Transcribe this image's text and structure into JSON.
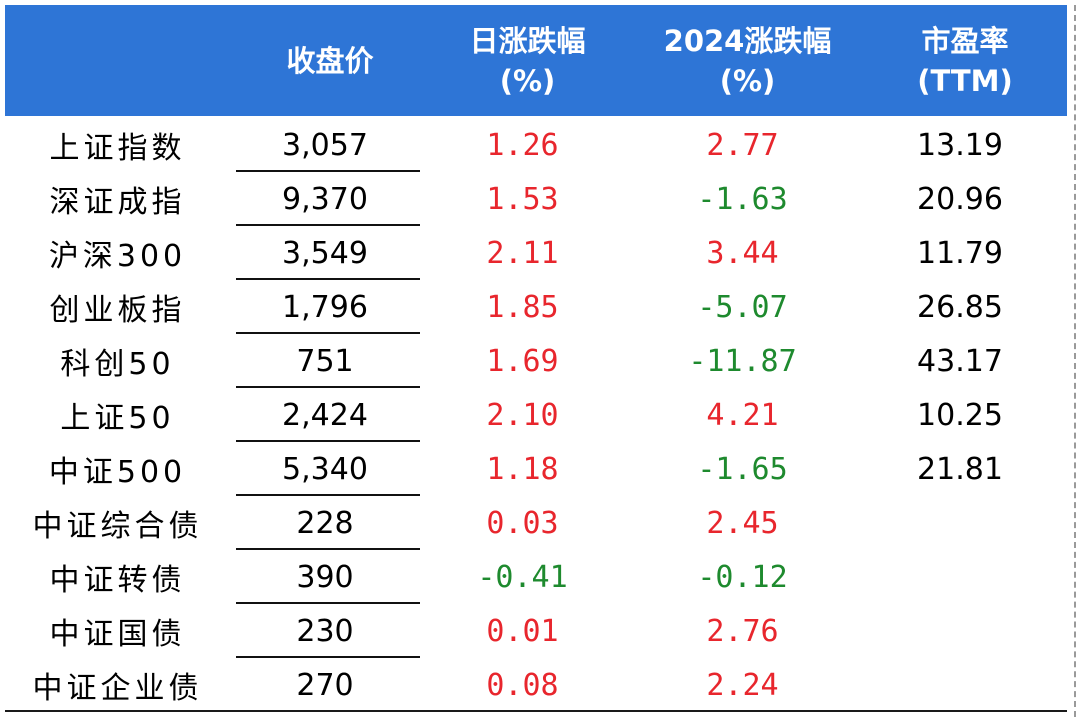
{
  "table": {
    "headers": {
      "close": "收盘价",
      "daily_line1": "日涨跌幅",
      "daily_line2": "(%)",
      "ytd_line1": "2024涨跌幅",
      "ytd_line2": "(%)",
      "pe_line1": "市盈率",
      "pe_line2": "(TTM)"
    },
    "rows": [
      {
        "name": "上证指数",
        "close": "3,057",
        "daily": "1.26",
        "ytd": "2.77",
        "pe": "13.19"
      },
      {
        "name": "深证成指",
        "close": "9,370",
        "daily": "1.53",
        "ytd": "-1.63",
        "pe": "20.96"
      },
      {
        "name": "沪深300",
        "close": "3,549",
        "daily": "2.11",
        "ytd": "3.44",
        "pe": "11.79"
      },
      {
        "name": "创业板指",
        "close": "1,796",
        "daily": "1.85",
        "ytd": "-5.07",
        "pe": "26.85"
      },
      {
        "name": "科创50",
        "close": "751",
        "daily": "1.69",
        "ytd": "-11.87",
        "pe": "43.17"
      },
      {
        "name": "上证50",
        "close": "2,424",
        "daily": "2.10",
        "ytd": "4.21",
        "pe": "10.25"
      },
      {
        "name": "中证500",
        "close": "5,340",
        "daily": "1.18",
        "ytd": "-1.65",
        "pe": "21.81"
      },
      {
        "name": "中证综合债",
        "close": "228",
        "daily": "0.03",
        "ytd": "2.45",
        "pe": ""
      },
      {
        "name": "中证转债",
        "close": "390",
        "daily": "-0.41",
        "ytd": "-0.12",
        "pe": ""
      },
      {
        "name": "中证国债",
        "close": "230",
        "daily": "0.01",
        "ytd": "2.76",
        "pe": ""
      },
      {
        "name": "中证企业债",
        "close": "270",
        "daily": "0.08",
        "ytd": "2.24",
        "pe": ""
      }
    ]
  },
  "colors": {
    "header_bg": "#2e75d6",
    "positive": "#e8262d",
    "negative": "#1e8a2e"
  }
}
